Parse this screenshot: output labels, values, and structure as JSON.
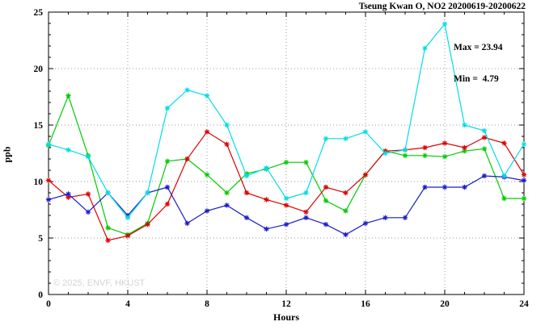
{
  "chart_data": {
    "type": "line",
    "title": "Tseung Kwan O, NO2 20200619-20200622",
    "xlabel": "Hours",
    "ylabel": "ppb",
    "watermark": "© 2025, ENVF, HKUST",
    "annotations": {
      "max": "Max = 23.94",
      "min": "Min =  4.79"
    },
    "xlim": [
      0,
      24
    ],
    "ylim": [
      0,
      25
    ],
    "xticks": [
      0,
      4,
      8,
      12,
      16,
      20,
      24
    ],
    "yticks": [
      0,
      5,
      10,
      15,
      20,
      25
    ],
    "grid": true,
    "legend": "none",
    "marker": "asterisk",
    "x": [
      0,
      1,
      2,
      3,
      4,
      5,
      6,
      7,
      8,
      9,
      10,
      11,
      12,
      13,
      14,
      15,
      16,
      17,
      18,
      19,
      20,
      21,
      22,
      23,
      24
    ],
    "series": [
      {
        "name": "green",
        "color": "#00cc00",
        "values": [
          13.2,
          17.6,
          12.3,
          5.9,
          5.3,
          6.3,
          11.8,
          12.0,
          10.6,
          9.0,
          10.7,
          11.1,
          11.7,
          11.7,
          8.3,
          7.4,
          10.6,
          12.7,
          12.3,
          12.3,
          12.2,
          12.7,
          12.9,
          8.5,
          8.5
        ]
      },
      {
        "name": "red",
        "color": "#dd0000",
        "values": [
          10.1,
          8.6,
          8.9,
          4.79,
          5.2,
          6.2,
          8.0,
          12.0,
          14.4,
          13.3,
          9.0,
          8.4,
          7.9,
          7.3,
          9.5,
          9.0,
          10.6,
          12.7,
          12.8,
          13.0,
          13.4,
          13.0,
          13.9,
          13.4,
          10.6
        ]
      },
      {
        "name": "blue",
        "color": "#1a1acd",
        "values": [
          8.4,
          8.9,
          7.3,
          9.0,
          7.0,
          9.0,
          9.5,
          6.3,
          7.4,
          7.9,
          6.8,
          5.8,
          6.2,
          6.8,
          6.2,
          5.3,
          6.3,
          6.8,
          6.8,
          9.5,
          9.5,
          9.5,
          10.5,
          10.4,
          10.1
        ]
      },
      {
        "name": "cyan",
        "color": "#00dde8",
        "values": [
          13.3,
          12.8,
          12.2,
          9.0,
          6.8,
          9.0,
          16.5,
          18.1,
          17.6,
          15.0,
          10.5,
          11.2,
          8.5,
          9.0,
          13.8,
          13.8,
          14.4,
          12.5,
          12.8,
          21.8,
          23.94,
          15.0,
          14.5,
          10.5,
          13.3
        ]
      }
    ]
  }
}
